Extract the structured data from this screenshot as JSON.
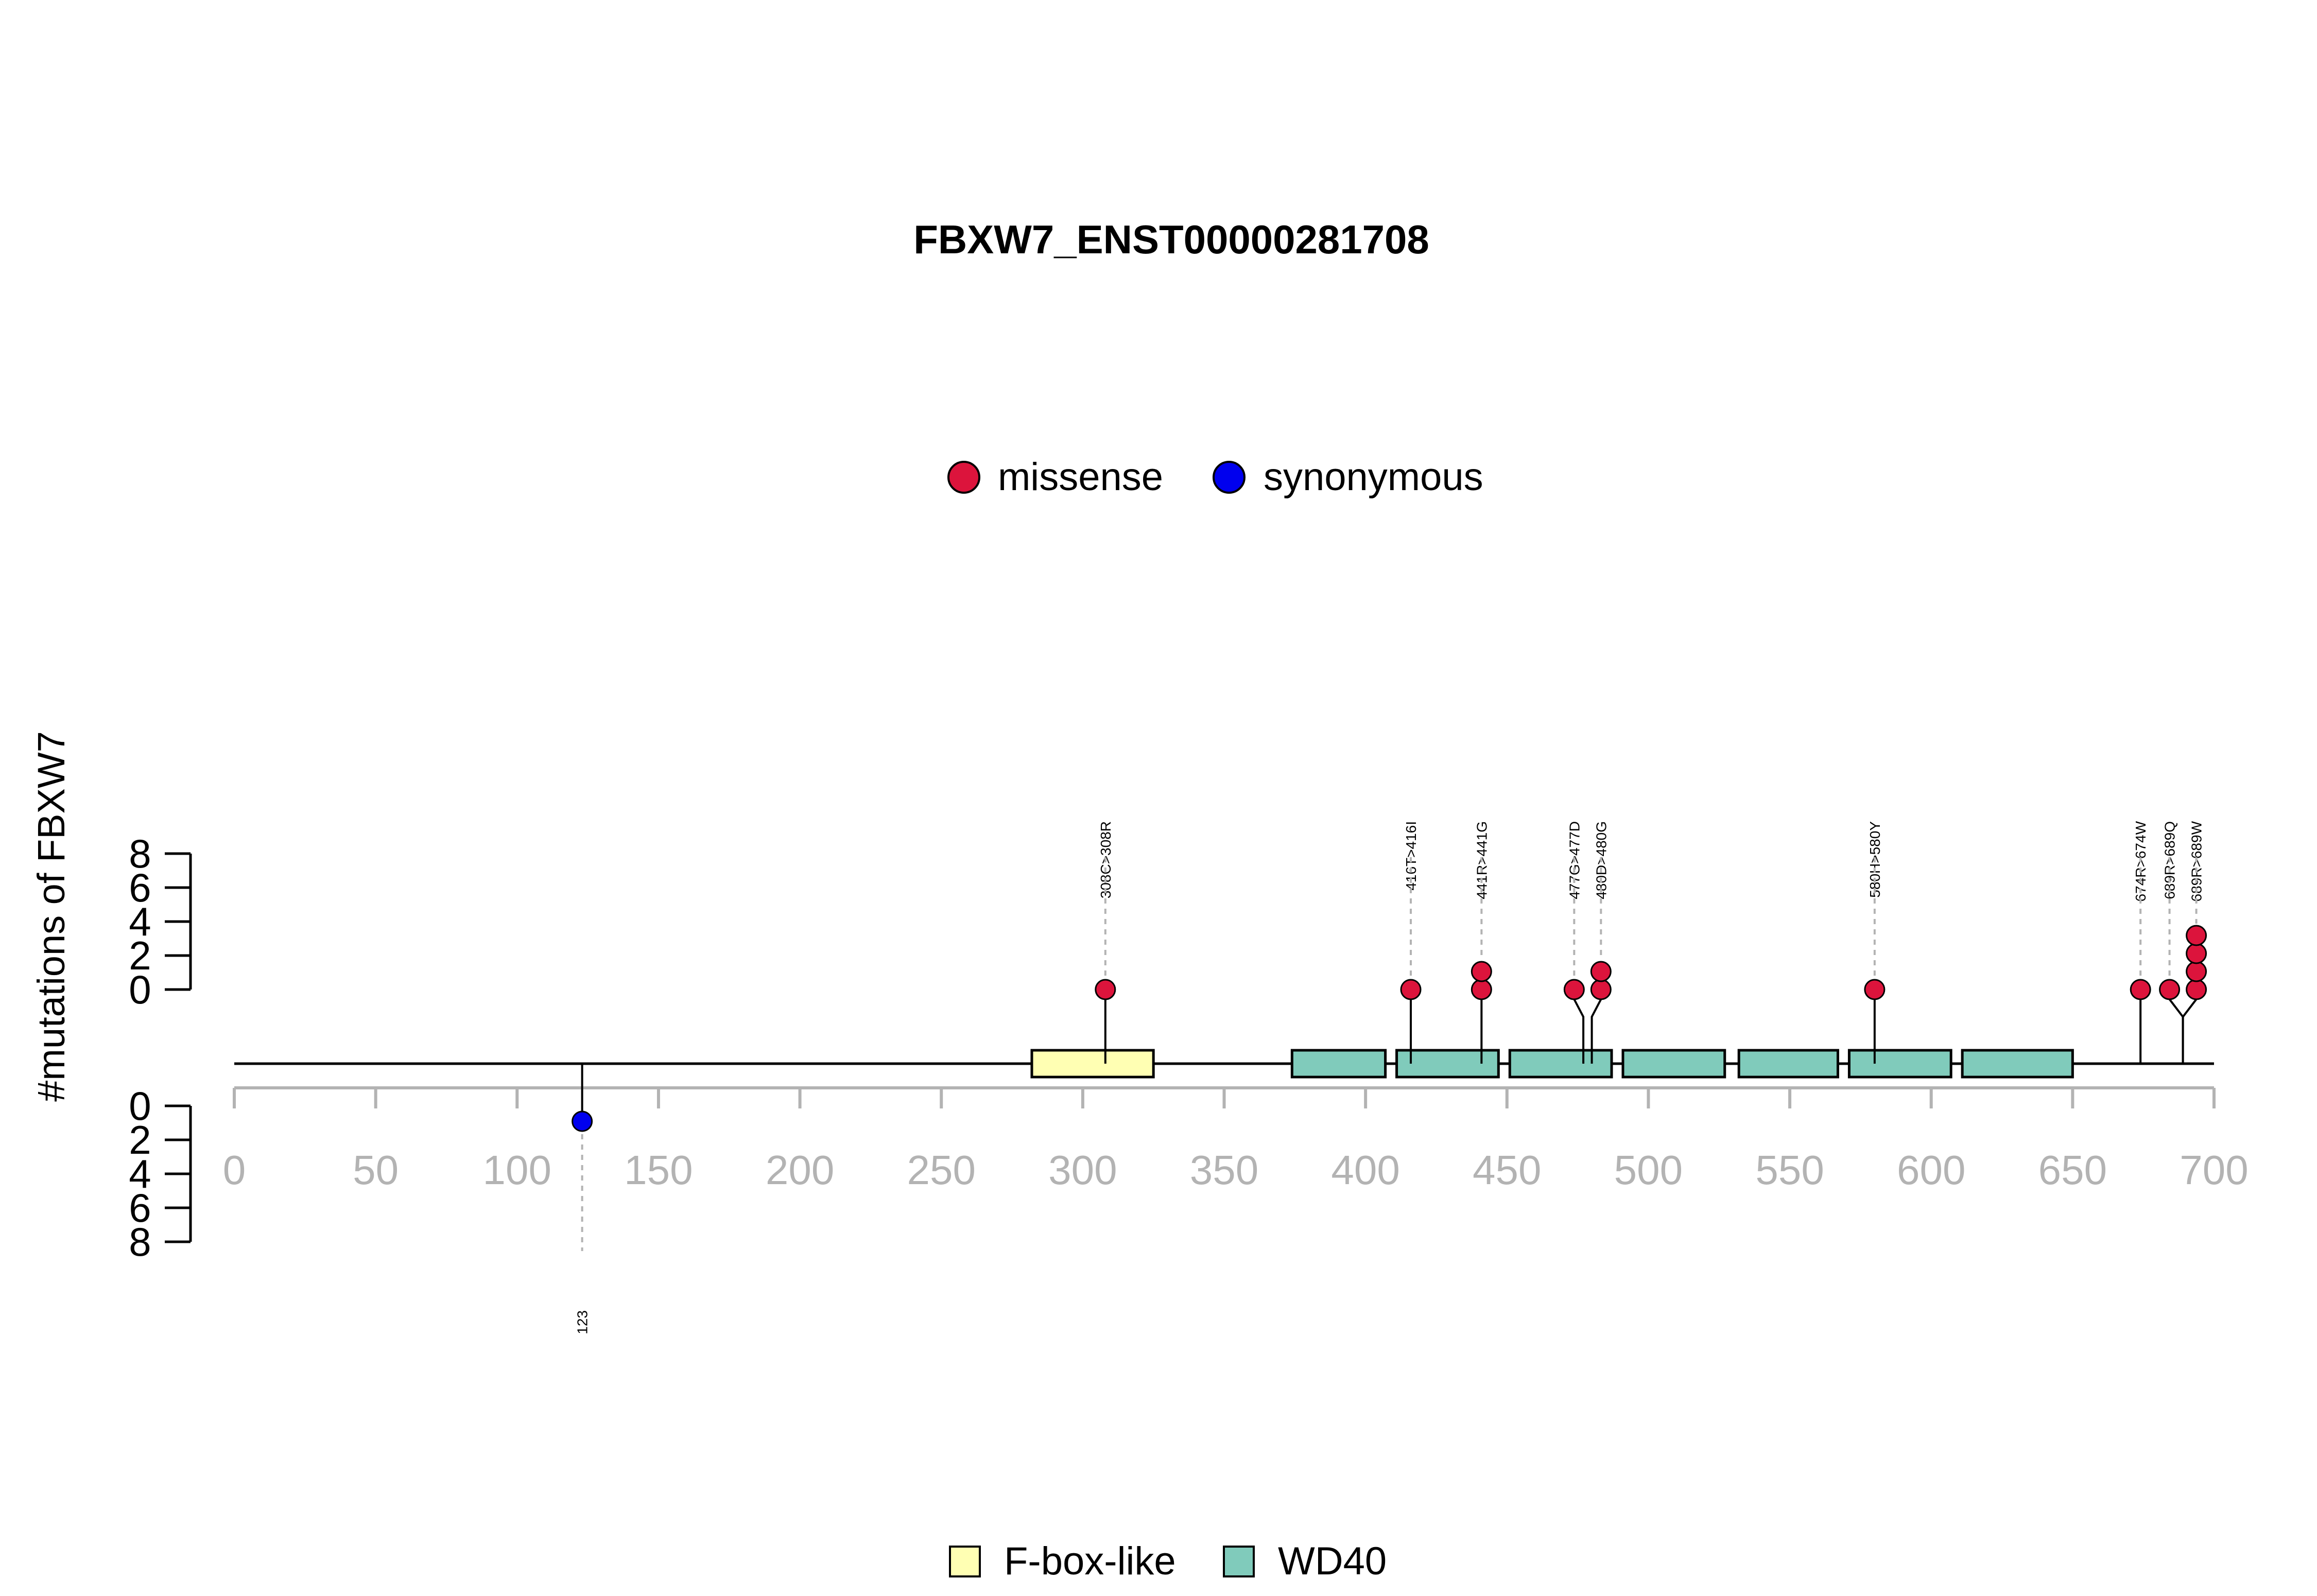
{
  "chart_data": {
    "type": "lollipop",
    "title": "FBXW7_ENST00000281708",
    "ylabel": "#mutations of FBXW7",
    "xlim": [
      0,
      700
    ],
    "x_ticks": [
      0,
      50,
      100,
      150,
      200,
      250,
      300,
      350,
      400,
      450,
      500,
      550,
      600,
      650,
      700
    ],
    "y_ticks_top": [
      0,
      2,
      4,
      6,
      8
    ],
    "y_ticks_bottom": [
      0,
      2,
      4,
      6,
      8
    ],
    "ylim": [
      0,
      8
    ],
    "legend_top": [
      {
        "name": "missense",
        "color": "#dc143c"
      },
      {
        "name": "synonymous",
        "color": "#0000ee"
      }
    ],
    "legend_bottom": [
      {
        "name": "F-box-like",
        "color": "#ffffb3"
      },
      {
        "name": "WD40",
        "color": "#80cbbb"
      }
    ],
    "protein_length": 700,
    "domains": [
      {
        "name": "F-box-like",
        "start": 282,
        "end": 325,
        "color": "#ffffb3"
      },
      {
        "name": "WD40",
        "start": 374,
        "end": 407,
        "color": "#80cbbb"
      },
      {
        "name": "WD40",
        "start": 411,
        "end": 447,
        "color": "#80cbbb"
      },
      {
        "name": "WD40",
        "start": 451,
        "end": 487,
        "color": "#80cbbb"
      },
      {
        "name": "WD40",
        "start": 491,
        "end": 527,
        "color": "#80cbbb"
      },
      {
        "name": "WD40",
        "start": 532,
        "end": 567,
        "color": "#80cbbb"
      },
      {
        "name": "WD40",
        "start": 571,
        "end": 607,
        "color": "#80cbbb"
      },
      {
        "name": "WD40",
        "start": 611,
        "end": 650,
        "color": "#80cbbb"
      }
    ],
    "mutations": [
      {
        "label": "123",
        "position": 123,
        "count": 1,
        "type": "synonymous",
        "side": "bottom"
      },
      {
        "label": "308C>308R",
        "position": 308,
        "count": 1,
        "type": "missense",
        "side": "top"
      },
      {
        "label": "416T>416I",
        "position": 416,
        "count": 1,
        "type": "missense",
        "side": "top"
      },
      {
        "label": "441R>441G",
        "position": 441,
        "count": 2,
        "type": "missense",
        "side": "top"
      },
      {
        "label": "477G>477D",
        "position": 477,
        "count": 1,
        "type": "missense",
        "side": "top"
      },
      {
        "label": "480D>480G",
        "position": 480,
        "count": 2,
        "type": "missense",
        "side": "top"
      },
      {
        "label": "580H>580Y",
        "position": 580,
        "count": 1,
        "type": "missense",
        "side": "top"
      },
      {
        "label": "674R>674W",
        "position": 674,
        "count": 1,
        "type": "missense",
        "side": "top"
      },
      {
        "label": "689R>689Q",
        "position": 689,
        "count": 1,
        "type": "missense",
        "side": "top"
      },
      {
        "label": "689R>689W",
        "position": 689,
        "count": 4,
        "type": "missense",
        "side": "top"
      }
    ]
  }
}
